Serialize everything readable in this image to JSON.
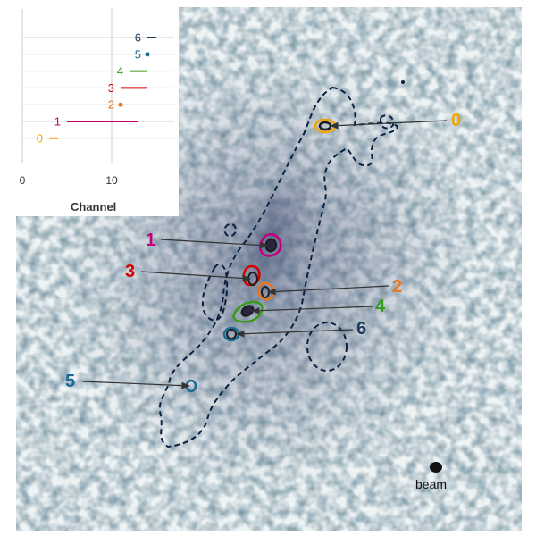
{
  "image": {
    "beam_label": "beam",
    "colors": {
      "dashed_contour": "#0b1f3f",
      "arrow": "#333333",
      "c0": "#f0a500",
      "c1": "#c0007a",
      "c2": "#e8761e",
      "c3": "#d40000",
      "c4": "#3a9a1a",
      "c5": "#1a6a95",
      "c6": "#1c3a5a"
    },
    "sources": [
      {
        "id": "0",
        "label": "0"
      },
      {
        "id": "1",
        "label": "1"
      },
      {
        "id": "2",
        "label": "2"
      },
      {
        "id": "3",
        "label": "3"
      },
      {
        "id": "4",
        "label": "4"
      },
      {
        "id": "5",
        "label": "5"
      },
      {
        "id": "6",
        "label": "6"
      }
    ]
  },
  "chart_data": {
    "type": "range",
    "xlabel": "Channel",
    "x_ticks": [
      "0",
      "10"
    ],
    "grid": true,
    "series": [
      {
        "name": "6",
        "start": 14,
        "end": 15
      },
      {
        "name": "5",
        "start": 14,
        "end": 14
      },
      {
        "name": "4",
        "start": 12,
        "end": 14
      },
      {
        "name": "3",
        "start": 11,
        "end": 14
      },
      {
        "name": "2",
        "start": 11,
        "end": 11
      },
      {
        "name": "1",
        "start": 5,
        "end": 13
      },
      {
        "name": "0",
        "start": 3,
        "end": 4
      }
    ]
  }
}
